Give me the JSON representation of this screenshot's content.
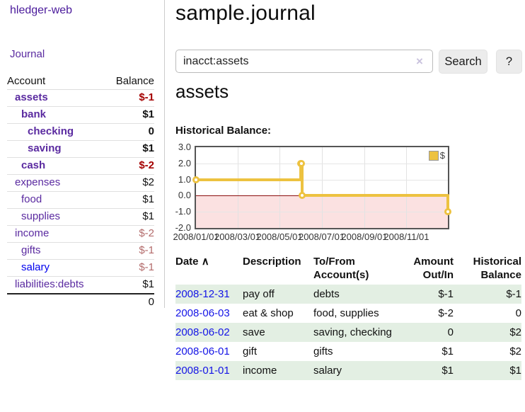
{
  "sidebar": {
    "brand": "hledger-web",
    "nav": [
      {
        "label": "Journal"
      }
    ],
    "accounts_table": {
      "col_account": "Account",
      "col_balance": "Balance",
      "rows": [
        {
          "name": "assets",
          "indent": 1,
          "bold": true,
          "link_color": "purple",
          "balance": "$-1",
          "balance_style": "neg-strong"
        },
        {
          "name": "bank",
          "indent": 2,
          "bold": true,
          "link_color": "purple",
          "balance": "$1",
          "balance_style": "pos"
        },
        {
          "name": "checking",
          "indent": 3,
          "bold": true,
          "link_color": "purple",
          "balance": "0",
          "balance_style": "pos"
        },
        {
          "name": "saving",
          "indent": 3,
          "bold": true,
          "link_color": "purple",
          "balance": "$1",
          "balance_style": "pos"
        },
        {
          "name": "cash",
          "indent": 2,
          "bold": true,
          "link_color": "purple",
          "balance": "$-2",
          "balance_style": "neg-strong"
        },
        {
          "name": "expenses",
          "indent": 1,
          "bold": false,
          "link_color": "purple",
          "balance": "$2",
          "balance_style": "pos"
        },
        {
          "name": "food",
          "indent": 2,
          "bold": false,
          "link_color": "purple",
          "balance": "$1",
          "balance_style": "pos"
        },
        {
          "name": "supplies",
          "indent": 2,
          "bold": false,
          "link_color": "purple",
          "balance": "$1",
          "balance_style": "pos"
        },
        {
          "name": "income",
          "indent": 1,
          "bold": false,
          "link_color": "purple",
          "balance": "$-2",
          "balance_style": "neg-faded"
        },
        {
          "name": "gifts",
          "indent": 2,
          "bold": false,
          "link_color": "purple",
          "balance": "$-1",
          "balance_style": "neg-faded"
        },
        {
          "name": "salary",
          "indent": 2,
          "bold": false,
          "link_color": "blue",
          "balance": "$-1",
          "balance_style": "neg-faded"
        },
        {
          "name": "liabilities:debts",
          "indent": 1,
          "bold": false,
          "link_color": "purple",
          "balance": "$1",
          "balance_style": "pos"
        }
      ],
      "total": "0"
    }
  },
  "header": {
    "title": "sample.journal"
  },
  "search": {
    "value": "inacct:assets",
    "clear_icon": "×",
    "button_label": "Search",
    "help_label": "?"
  },
  "account_page": {
    "heading": "assets",
    "chart_label": "Historical Balance:"
  },
  "chart_data": {
    "type": "line",
    "step": true,
    "title": "Historical Balance:",
    "legend": [
      {
        "label": "$",
        "color": "#edc240"
      }
    ],
    "series": [
      {
        "name": "$",
        "color": "#edc240",
        "points": [
          [
            "2008-01-01",
            1
          ],
          [
            "2008-06-01",
            2
          ],
          [
            "2008-06-02",
            2
          ],
          [
            "2008-06-03",
            0
          ],
          [
            "2008-12-31",
            -1
          ]
        ]
      }
    ],
    "xlim": [
      "2008-01-01",
      "2008-12-31"
    ],
    "ylim": [
      -2,
      3
    ],
    "x_ticks": [
      {
        "date": "2008-01-01",
        "label": "2008/01/01"
      },
      {
        "date": "2008-03-01",
        "label": "2008/03/01"
      },
      {
        "date": "2008-05-01",
        "label": "2008/05/01"
      },
      {
        "date": "2008-07-01",
        "label": "2008/07/01"
      },
      {
        "date": "2008-09-01",
        "label": "2008/09/01"
      },
      {
        "date": "2008-11-01",
        "label": "2008/11/01"
      }
    ],
    "y_ticks": [
      {
        "v": 3,
        "label": "3.0"
      },
      {
        "v": 2,
        "label": "2.0"
      },
      {
        "v": 1,
        "label": "1.0"
      },
      {
        "v": 0,
        "label": "0.0"
      },
      {
        "v": -1,
        "label": "-1.0"
      },
      {
        "v": -2,
        "label": "-2.0"
      }
    ],
    "grid": true,
    "negative_region_shaded": true,
    "legend_position": "top-right"
  },
  "register": {
    "headers": {
      "date": "Date",
      "sort_indicator": "∧",
      "description": "Description",
      "accounts": "To/From Account(s)",
      "amount": "Amount Out/In",
      "balance": "Historical Balance"
    },
    "rows": [
      {
        "date": "2008-12-31",
        "description": "pay off",
        "accounts": "debts",
        "amount": "$-1",
        "amount_neg": true,
        "balance": "$-1",
        "balance_neg": true
      },
      {
        "date": "2008-06-03",
        "description": "eat & shop",
        "accounts": "food, supplies",
        "amount": "$-2",
        "amount_neg": true,
        "balance": "0",
        "balance_neg": false
      },
      {
        "date": "2008-06-02",
        "description": "save",
        "accounts": "saving, checking",
        "amount": "0",
        "amount_neg": false,
        "balance": "$2",
        "balance_neg": false
      },
      {
        "date": "2008-06-01",
        "description": "gift",
        "accounts": "gifts",
        "amount": "$1",
        "amount_neg": false,
        "balance": "$2",
        "balance_neg": false
      },
      {
        "date": "2008-01-01",
        "description": "income",
        "accounts": "salary",
        "amount": "$1",
        "amount_neg": false,
        "balance": "$1",
        "balance_neg": false
      }
    ]
  },
  "colors": {
    "link_purple": "#5a2aa0",
    "link_blue": "#0000ee",
    "date_link_blue": "#1414e6",
    "neg_strong": "#a40000",
    "neg_faded": "#b36b6b",
    "table_neg": "#8b0000",
    "row_stripe_green": "#e3efe3",
    "chart_line_gold": "#edc240",
    "chart_neg_region_pink": "#fbe1e1",
    "chart_zero_line_red": "#8b0f0f",
    "chart_border_gray": "#555555",
    "button_gray": "#ececec"
  }
}
